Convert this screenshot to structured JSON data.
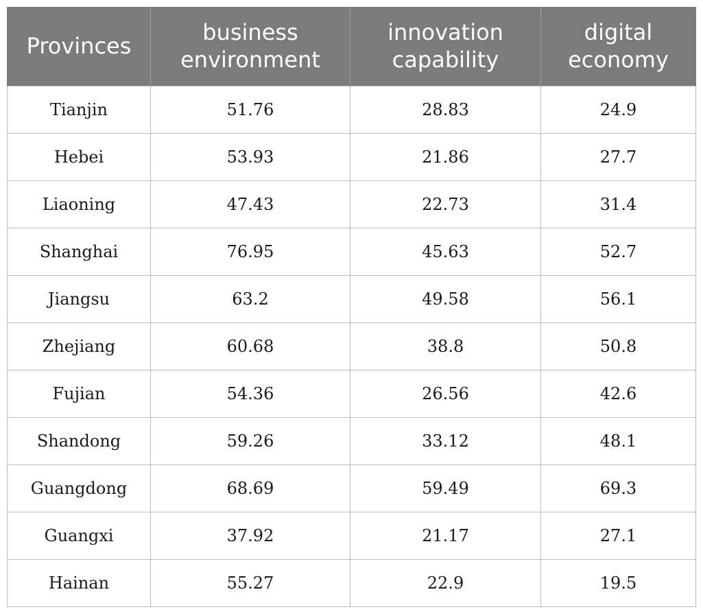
{
  "table": {
    "headers": [
      [
        "Provinces"
      ],
      [
        "business",
        "environment"
      ],
      [
        "innovation",
        "capability"
      ],
      [
        "digital",
        "economy"
      ]
    ],
    "rows": [
      [
        "Tianjin",
        "51.76",
        "28.83",
        "24.9"
      ],
      [
        "Hebei",
        "53.93",
        "21.86",
        "27.7"
      ],
      [
        "Liaoning",
        "47.43",
        "22.73",
        "31.4"
      ],
      [
        "Shanghai",
        "76.95",
        "45.63",
        "52.7"
      ],
      [
        "Jiangsu",
        "63.2",
        "49.58",
        "56.1"
      ],
      [
        "Zhejiang",
        "60.68",
        "38.8",
        "50.8"
      ],
      [
        "Fujian",
        "54.36",
        "26.56",
        "42.6"
      ],
      [
        "Shandong",
        "59.26",
        "33.12",
        "48.1"
      ],
      [
        "Guangdong",
        "68.69",
        "59.49",
        "69.3"
      ],
      [
        "Guangxi",
        "37.92",
        "21.17",
        "27.1"
      ],
      [
        "Hainan",
        "55.27",
        "22.9",
        "19.5"
      ]
    ],
    "colors": {
      "header_bg": "#7b7b7b",
      "header_text": "#ffffff",
      "grid": "#bdbdbd"
    }
  }
}
